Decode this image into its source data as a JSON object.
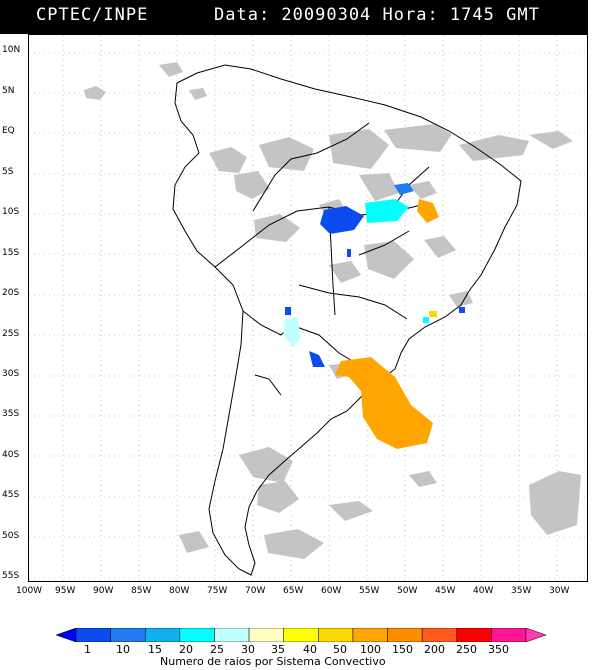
{
  "header": {
    "source": "CPTEC/INPE",
    "datetime": "Data: 20090304 Hora: 1745 GMT"
  },
  "lat_labels": [
    "10N",
    "5N",
    "EQ",
    "5S",
    "10S",
    "15S",
    "20S",
    "25S",
    "30S",
    "35S",
    "40S",
    "45S",
    "50S",
    "55S"
  ],
  "lon_labels": [
    "100W",
    "95W",
    "90W",
    "85W",
    "80W",
    "75W",
    "70W",
    "65W",
    "60W",
    "55W",
    "50W",
    "45W",
    "40W",
    "35W",
    "30W"
  ],
  "colorbar": {
    "values": [
      "1",
      "10",
      "15",
      "20",
      "25",
      "30",
      "35",
      "40",
      "50",
      "100",
      "150",
      "200",
      "250",
      "350"
    ],
    "colors": [
      "#0000ff",
      "#0a4cf0",
      "#1e7cf0",
      "#10b0f0",
      "#00ffff",
      "#c0ffff",
      "#ffffc0",
      "#ffff00",
      "#ffd700",
      "#ffa500",
      "#ff8c00",
      "#ff5a1e",
      "#ff0000",
      "#ff1493",
      "#ff3caa"
    ],
    "title": "Numero de raios por Sistema Convectivo"
  }
}
